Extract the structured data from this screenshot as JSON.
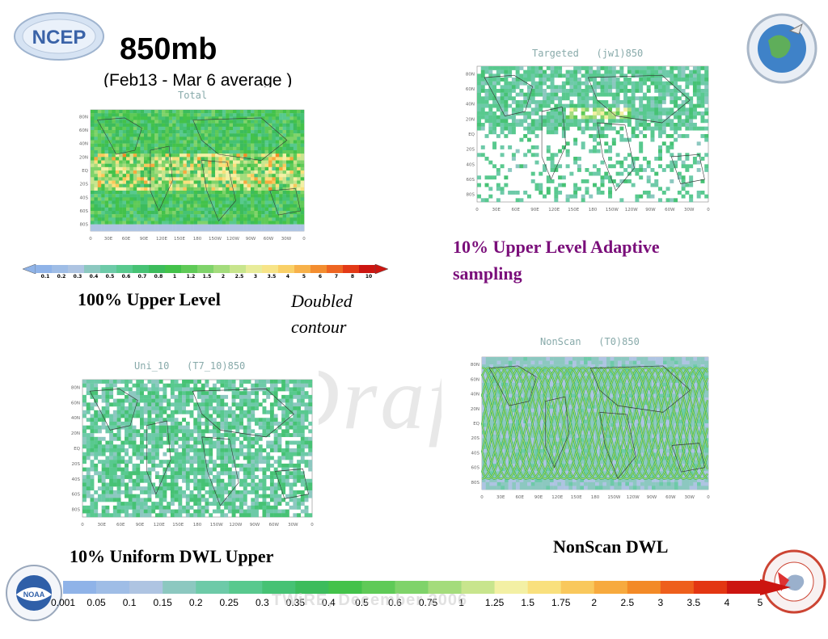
{
  "slide": {
    "title": "850mb",
    "subtitle": "(Feb13 - Mar 6 average )",
    "watermark": "Draft",
    "footer_watermark": "TWiRE, December 2006"
  },
  "logos": {
    "ncep": "NCEP",
    "noaa": "NOAA"
  },
  "panels": {
    "total": {
      "title": "Total",
      "caption": "100% Upper Level",
      "note": "Doubled contour"
    },
    "targeted": {
      "title": "Targeted   (jw1)850",
      "caption_line1": "10% Upper Level Adaptive",
      "caption_line2": "sampling"
    },
    "uniform": {
      "title": "Uni_10   (T7_10)850",
      "caption": "10% Uniform DWL Upper"
    },
    "nonscan": {
      "title": "NonScan   (T0)850",
      "caption": "NonScan DWL"
    }
  },
  "axis": {
    "lats": [
      "80N",
      "60N",
      "40N",
      "20N",
      "EQ",
      "20S",
      "40S",
      "60S",
      "80S"
    ],
    "lons": [
      "0",
      "30E",
      "60E",
      "90E",
      "120E",
      "150E",
      "180",
      "150W",
      "120W",
      "90W",
      "60W",
      "30W",
      "0"
    ]
  },
  "colorbar_small": {
    "labels": [
      "0.1",
      "0.2",
      "0.3",
      "0.4",
      "0.5",
      "0.6",
      "0.7",
      "0.8",
      "1",
      "1.2",
      "1.5",
      "2",
      "2.5",
      "3",
      "3.5",
      "4",
      "5",
      "6",
      "7",
      "8",
      "10"
    ],
    "colors": [
      "#8fb3e8",
      "#9fbde6",
      "#aec4e2",
      "#8cc8c0",
      "#6dcaa8",
      "#58c98e",
      "#46c274",
      "#3cbc5c",
      "#43c24a",
      "#5fca57",
      "#7fd36a",
      "#a4dc7c",
      "#c8e58d",
      "#e8ec9a",
      "#f7e488",
      "#f9d067",
      "#f7b14a",
      "#f38d2f",
      "#ee6522",
      "#e33a17",
      "#cc1510"
    ]
  },
  "colorbar_main": {
    "labels": [
      "0.001",
      "0.05",
      "0.1",
      "0.15",
      "0.2",
      "0.25",
      "0.3",
      "0.35",
      "0.4",
      "0.5",
      "0.6",
      "0.75",
      "1",
      "1.25",
      "1.5",
      "1.75",
      "2",
      "2.5",
      "3",
      "3.5",
      "4",
      "5"
    ],
    "colors": [
      "#8fb3e8",
      "#9fbde6",
      "#aec4e2",
      "#8cc8c0",
      "#6dcaa8",
      "#58c98e",
      "#46c274",
      "#3cbc5c",
      "#43c24a",
      "#5fca57",
      "#7fd36a",
      "#a4dc7c",
      "#c8e58d",
      "#f3f0a4",
      "#f9e07d",
      "#f9c85c",
      "#f7aa3e",
      "#f38a27",
      "#ee5f1c",
      "#e33612",
      "#cc1510"
    ]
  }
}
